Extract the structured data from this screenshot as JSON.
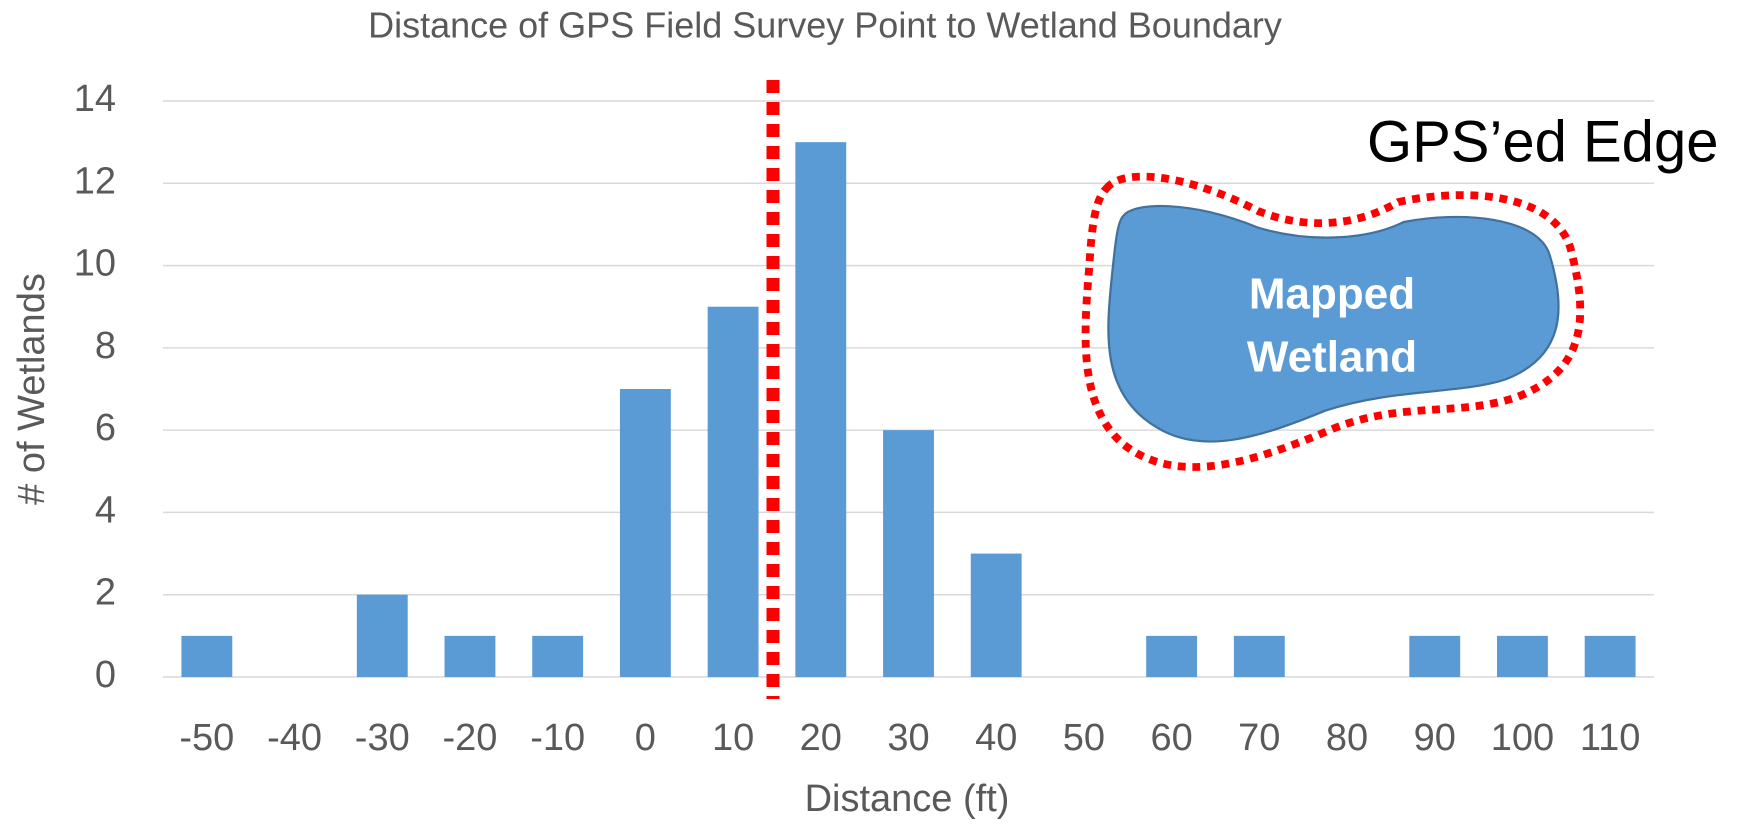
{
  "chart_data": {
    "type": "bar",
    "title": "Distance of GPS Field Survey Point to Wetland Boundary",
    "x_label": "Distance (ft)",
    "y_label": "# of Wetlands",
    "categories": [
      "-50",
      "-40",
      "-30",
      "-20",
      "-10",
      "0",
      "10",
      "20",
      "30",
      "40",
      "50",
      "60",
      "70",
      "80",
      "90",
      "100",
      "110"
    ],
    "values": [
      1,
      0,
      2,
      1,
      1,
      7,
      9,
      13,
      6,
      3,
      0,
      1,
      1,
      0,
      1,
      1,
      1
    ],
    "color": "#5b9bd5",
    "ylim": [
      0,
      14
    ],
    "yticks": [
      0,
      2,
      4,
      6,
      8,
      10,
      12,
      14
    ],
    "grid": true,
    "annotations": {
      "edge": "GPS’ed Edge",
      "wetland": [
        "Mapped",
        "Wetland"
      ]
    }
  }
}
